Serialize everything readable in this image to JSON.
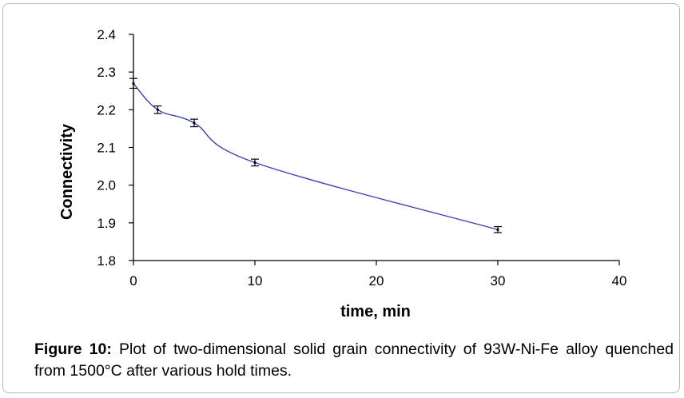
{
  "chart_data": {
    "type": "line",
    "title": "",
    "xlabel": "time, min",
    "ylabel": "Connectivity",
    "xlim": [
      0,
      40
    ],
    "ylim": [
      1.8,
      2.4
    ],
    "xticks": [
      "0",
      "10",
      "20",
      "30",
      "40"
    ],
    "yticks": [
      "1.8",
      "1.9",
      "2.0",
      "2.1",
      "2.2",
      "2.3",
      "2.4"
    ],
    "grid": false,
    "line_color": "#3b3fb5",
    "series": [
      {
        "x": [
          0,
          2,
          5,
          10,
          30
        ],
        "y": [
          2.27,
          2.2,
          2.165,
          2.06,
          1.882
        ],
        "error": [
          0.013,
          0.01,
          0.01,
          0.009,
          0.008
        ]
      }
    ]
  },
  "caption": {
    "label": "Figure 10:",
    "text": " Plot of two-dimensional solid grain connectivity of 93W-Ni-Fe alloy quenched from 1500°C after various hold times."
  }
}
